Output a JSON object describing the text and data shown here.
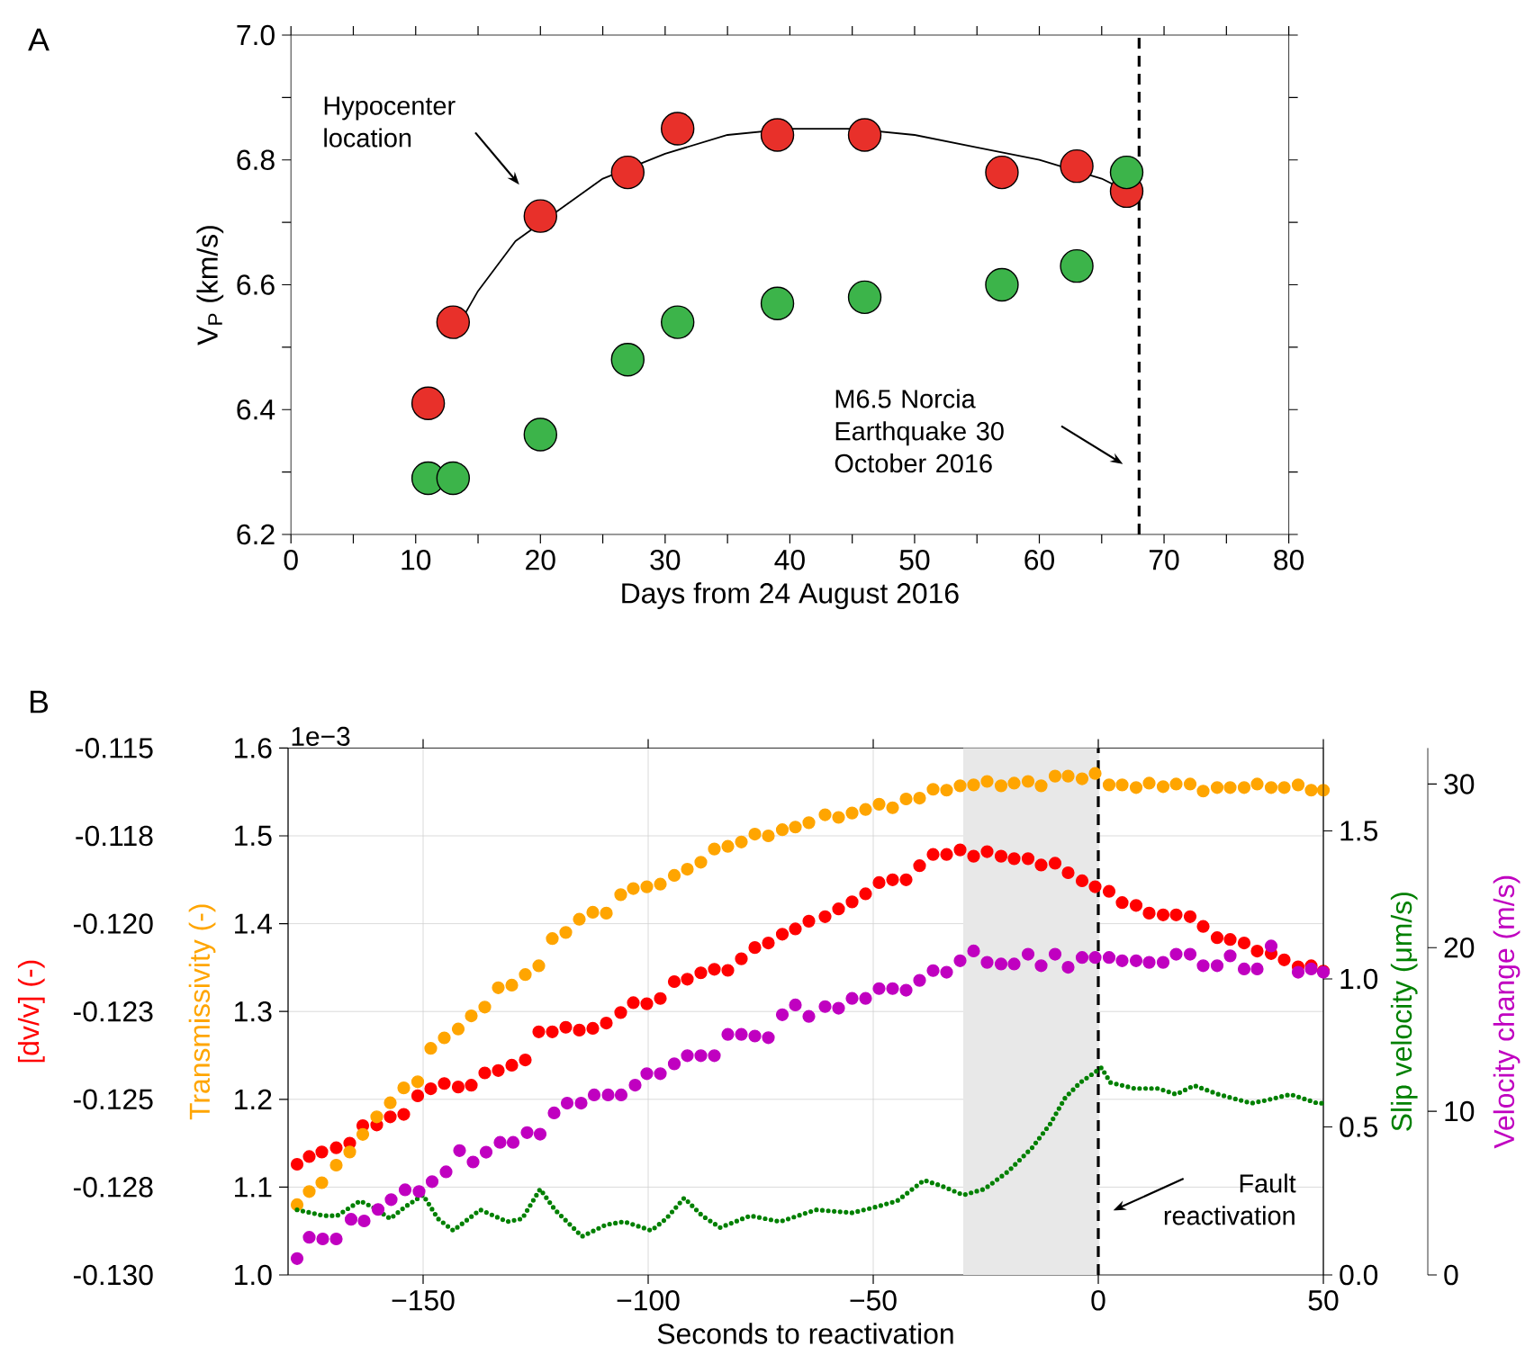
{
  "chart_data": [
    {
      "type": "scatter",
      "xlabel": "Days from 24 August 2016",
      "ylabel": "V$_{P}$ (km/s)",
      "xlim": [
        0,
        80
      ],
      "ylim": [
        6.2,
        7.0
      ],
      "xticks": [
        0,
        {
          "value": 5,
          "label": null
        },
        10,
        {
          "value": 15,
          "label": null
        },
        20,
        {
          "value": 25,
          "label": null
        },
        30,
        {
          "value": 35,
          "label": null
        },
        40,
        {
          "value": 45,
          "label": null
        },
        50,
        {
          "value": 55,
          "label": null
        },
        60,
        {
          "value": 65,
          "label": null
        },
        70,
        {
          "value": 75,
          "label": null
        },
        80
      ],
      "yticks": [
        6.2,
        {
          "value": 6.3,
          "label": null
        },
        6.4,
        {
          "value": 6.5,
          "label": null
        },
        6.6,
        {
          "value": 6.7,
          "label": null
        },
        6.8,
        {
          "value": 6.9,
          "label": null
        },
        {
          "value": 7.0,
          "label": "7.0"
        }
      ],
      "x": [
        11,
        13,
        20,
        27,
        31,
        39,
        46,
        57,
        63,
        67
      ],
      "series": [
        {
          "color": "#e8302a",
          "marker": "circle",
          "values": [
            6.41,
            6.54,
            6.71,
            6.78,
            6.85,
            6.84,
            6.84,
            6.78,
            6.79,
            6.75
          ]
        },
        {
          "color": "#3cb44a",
          "marker": "circle",
          "values": [
            6.29,
            6.29,
            6.36,
            6.48,
            6.54,
            6.57,
            6.58,
            6.6,
            6.63,
            6.78
          ]
        },
        {
          "type": "line",
          "color": "#000000",
          "x": [
            13,
            15,
            18,
            25,
            30,
            35,
            40,
            45,
            50,
            55,
            60,
            65,
            67
          ],
          "values": [
            6.52,
            6.59,
            6.67,
            6.77,
            6.81,
            6.84,
            6.85,
            6.85,
            6.84,
            6.82,
            6.8,
            6.77,
            6.75
          ]
        }
      ],
      "ref_lines": [
        {
          "axis": "x",
          "value": 68,
          "color": "#000000",
          "line_style": "dashed"
        }
      ],
      "annotations": [
        "A",
        "Hypocenter location",
        "M6.5 Norcia Earthquake 30 October 2016"
      ]
    },
    {
      "type": "scatter",
      "xlabel": "Seconds to reactivation",
      "ylabel": "[dv/v] (-)",
      "y2label": "Transmissivity (-)",
      "xlim": [
        -180,
        50
      ],
      "ylim": [
        -0.13,
        -0.115
      ],
      "y2lim": [
        1.0,
        1.6
      ],
      "xticks": [
        {
          "value": -150,
          "label": "−150"
        },
        {
          "value": -100,
          "label": "−100"
        },
        {
          "value": -50,
          "label": "−50"
        },
        0,
        50
      ],
      "yticks": [
        {
          "value": -0.13,
          "label": "-0.130"
        },
        {
          "value": -0.1275,
          "label": "-0.128"
        },
        {
          "value": -0.125,
          "label": "-0.125"
        },
        {
          "value": -0.1225,
          "label": "-0.123"
        },
        {
          "value": -0.12,
          "label": "-0.120"
        },
        {
          "value": -0.1175,
          "label": "-0.118"
        },
        {
          "value": -0.115,
          "label": "-0.115"
        }
      ],
      "y2ticks": [
        {
          "value": 1.0,
          "label": "1.0"
        },
        1.1,
        1.2,
        1.3,
        1.4,
        1.5,
        1.6
      ],
      "grid": true,
      "x": [
        -178,
        -175.3,
        -172.5,
        -169.3,
        -166.3,
        -163.4,
        -160.3,
        -157.3,
        -154.3,
        -151.2,
        -148.3,
        -145.3,
        -142.2,
        -139.3,
        -136.3,
        -133.3,
        -130.3,
        -127.3,
        -124.3,
        -121.3,
        -118.3,
        -115.3,
        -112.3,
        -109.3,
        -106.1,
        -103.3,
        -100.3,
        -97.3,
        -94.2,
        -91.3,
        -88.3,
        -85.3,
        -82.3,
        -79.3,
        -76.3,
        -73.3,
        -70.2,
        -67.3,
        -64.3,
        -60.7,
        -57.7,
        -54.7,
        -51.7,
        -48.7,
        -45.7,
        -42.7,
        -39.7,
        -36.7,
        -33.7,
        -30.7,
        -27.7,
        -24.7,
        -21.6,
        -18.7,
        -15.6,
        -12.7,
        -9.6,
        -6.7,
        -3.6,
        -0.7,
        2.4,
        5.3,
        8.4,
        11.3,
        14.4,
        17.3,
        20.4,
        23.3,
        26.4,
        29.3,
        32.4,
        35.3,
        38.4,
        41.3,
        44.4,
        47.3,
        50
      ],
      "series": [
        {
          "axis": "y2",
          "color": "#ffa500",
          "marker": "circle",
          "values": [
            1.08,
            1.095,
            1.105,
            1.125,
            1.14,
            1.16,
            1.18,
            1.196,
            1.213,
            1.22,
            1.258,
            1.27,
            1.28,
            1.295,
            1.305,
            1.327,
            1.33,
            1.342,
            1.352,
            1.383,
            1.39,
            1.405,
            1.413,
            1.412,
            1.433,
            1.44,
            1.442,
            1.445,
            1.455,
            1.462,
            1.47,
            1.485,
            1.488,
            1.493,
            1.502,
            1.5,
            1.507,
            1.51,
            1.515,
            1.524,
            1.521,
            1.526,
            1.53,
            1.536,
            1.532,
            1.542,
            1.543,
            1.553,
            1.552,
            1.557,
            1.558,
            1.562,
            1.557,
            1.56,
            1.562,
            1.557,
            1.568,
            1.568,
            1.565,
            1.571,
            1.558,
            1.558,
            1.555,
            1.56,
            1.556,
            1.559,
            1.559,
            1.551,
            1.555,
            1.555,
            1.555,
            1.559,
            1.555,
            1.555,
            1.558,
            1.552,
            1.552
          ]
        },
        {
          "color": "#ff0000",
          "marker": "circle",
          "values": [
            -0.12685,
            -0.12663,
            -0.1265,
            -0.12638,
            -0.12625,
            -0.12575,
            -0.12573,
            -0.1255,
            -0.12543,
            -0.1249,
            -0.1247,
            -0.12455,
            -0.12465,
            -0.1246,
            -0.12425,
            -0.12418,
            -0.12403,
            -0.12388,
            -0.12308,
            -0.12308,
            -0.12295,
            -0.12303,
            -0.12298,
            -0.12283,
            -0.12253,
            -0.12225,
            -0.12228,
            -0.12213,
            -0.12165,
            -0.12158,
            -0.1214,
            -0.1213,
            -0.12133,
            -0.121,
            -0.12068,
            -0.12055,
            -0.1203,
            -0.12015,
            -0.11993,
            -0.1198,
            -0.11958,
            -0.11938,
            -0.11915,
            -0.11883,
            -0.11875,
            -0.11875,
            -0.11835,
            -0.11803,
            -0.11803,
            -0.1179,
            -0.11808,
            -0.11795,
            -0.11808,
            -0.11815,
            -0.11815,
            -0.11833,
            -0.11828,
            -0.11855,
            -0.11878,
            -0.11895,
            -0.11908,
            -0.1194,
            -0.11948,
            -0.1197,
            -0.11975,
            -0.11975,
            -0.1198,
            -0.12008,
            -0.1204,
            -0.12045,
            -0.12055,
            -0.12078,
            -0.12085,
            -0.12103,
            -0.12123,
            -0.1212,
            -0.12135
          ]
        }
      ],
      "bands": [
        {
          "axis": "x",
          "from": -30,
          "to": 0,
          "color": "#e8e8e8"
        }
      ],
      "ref_lines": [
        {
          "axis": "x",
          "value": 0,
          "color": "#000000",
          "line_style": "dashed"
        }
      ],
      "annotations": [
        "B",
        "1e−3",
        "Fault reactivation"
      ]
    },
    {
      "type": "scatter",
      "ylabel": "Slip velocity (μm/s)",
      "y2label": "Velocity change (m/s)",
      "xlim": [
        -180,
        50
      ],
      "ylim": [
        0,
        1.78
      ],
      "y2lim": [
        0,
        32.2
      ],
      "tick_labels": "y",
      "yticks": [
        {
          "value": 0,
          "label": "0.0"
        },
        0.5,
        {
          "value": 1.0,
          "label": "1.0"
        },
        1.5
      ],
      "y2ticks": [
        0,
        10,
        20,
        30
      ],
      "series": [
        {
          "axis": "y2",
          "color": "#c000c0",
          "marker": "circle",
          "x": [
            -178,
            -175.3,
            -172.3,
            -169.3,
            -166,
            -163.1,
            -160,
            -157.1,
            -154,
            -150.9,
            -148,
            -144.9,
            -141.9,
            -138.9,
            -136,
            -132.9,
            -130,
            -126.9,
            -124,
            -120.9,
            -118,
            -114.9,
            -112,
            -108.9,
            -106,
            -102.9,
            -100.3,
            -97.3,
            -94.2,
            -91.3,
            -88.3,
            -85.3,
            -82.3,
            -79.3,
            -76.3,
            -73.3,
            -70.2,
            -67.3,
            -64.3,
            -60.7,
            -57.7,
            -54.7,
            -51.7,
            -48.7,
            -45.7,
            -42.7,
            -39.7,
            -36.7,
            -33.7,
            -30.7,
            -27.7,
            -24.7,
            -21.6,
            -18.7,
            -15.6,
            -12.7,
            -9.6,
            -6.7,
            -3.6,
            -0.7,
            2.4,
            5.3,
            8.4,
            11.3,
            14.4,
            17.3,
            20.4,
            23.3,
            26.4,
            29.3,
            32.4,
            35.3,
            38.4,
            41.3,
            44.4,
            47.3,
            50
          ],
          "values": [
            1.0,
            2.3,
            2.2,
            2.2,
            3.4,
            3.3,
            4.0,
            4.6,
            5.2,
            5.1,
            5.7,
            6.3,
            7.6,
            6.9,
            7.5,
            8.1,
            8.1,
            8.7,
            8.6,
            9.9,
            10.5,
            10.5,
            11.0,
            11.0,
            11.0,
            11.6,
            12.3,
            12.3,
            12.9,
            13.4,
            13.4,
            13.4,
            14.7,
            14.7,
            14.6,
            14.5,
            15.9,
            16.5,
            15.8,
            16.4,
            16.3,
            16.9,
            16.9,
            17.5,
            17.5,
            17.4,
            18.0,
            18.6,
            18.5,
            19.2,
            19.8,
            19.1,
            19.0,
            19.0,
            19.6,
            18.9,
            19.6,
            18.8,
            19.4,
            19.4,
            19.4,
            19.2,
            19.2,
            19.1,
            19.1,
            19.6,
            19.6,
            18.9,
            18.9,
            19.5,
            18.7,
            18.7,
            20.1,
            null,
            18.5,
            18.7,
            18.5
          ]
        },
        {
          "type": "line",
          "line_style": "dotted",
          "color": "#008000",
          "x": [
            -178,
            -172,
            -169.1,
            -164,
            -161.3,
            -157.3,
            -154,
            -150,
            -146.7,
            -143.3,
            -137.3,
            -131.3,
            -128,
            -124,
            -120.7,
            -114.7,
            -109.3,
            -105.3,
            -99.3,
            -96,
            -92,
            -88,
            -84,
            -77.3,
            -70.7,
            -62.7,
            -54.7,
            -49.3,
            -44.7,
            -38.7,
            -34.7,
            -30,
            -25.3,
            -20,
            -14.7,
            -10.7,
            -7.3,
            -4,
            0.7,
            2.7,
            8,
            13.3,
            17.3,
            21.3,
            26.7,
            34,
            37.3,
            42.7,
            48.7,
            50
          ],
          "values": [
            0.22,
            0.2,
            0.2,
            0.25,
            0.23,
            0.19,
            0.23,
            0.27,
            0.19,
            0.15,
            0.22,
            0.18,
            0.19,
            0.29,
            0.22,
            0.13,
            0.17,
            0.18,
            0.15,
            0.19,
            0.26,
            0.2,
            0.16,
            0.2,
            0.18,
            0.22,
            0.21,
            0.23,
            0.25,
            0.32,
            0.3,
            0.27,
            0.29,
            0.35,
            0.43,
            0.51,
            0.6,
            0.65,
            0.7,
            0.65,
            0.63,
            0.63,
            0.61,
            0.64,
            0.61,
            0.58,
            0.59,
            0.61,
            0.58,
            0.58
          ]
        }
      ]
    }
  ]
}
